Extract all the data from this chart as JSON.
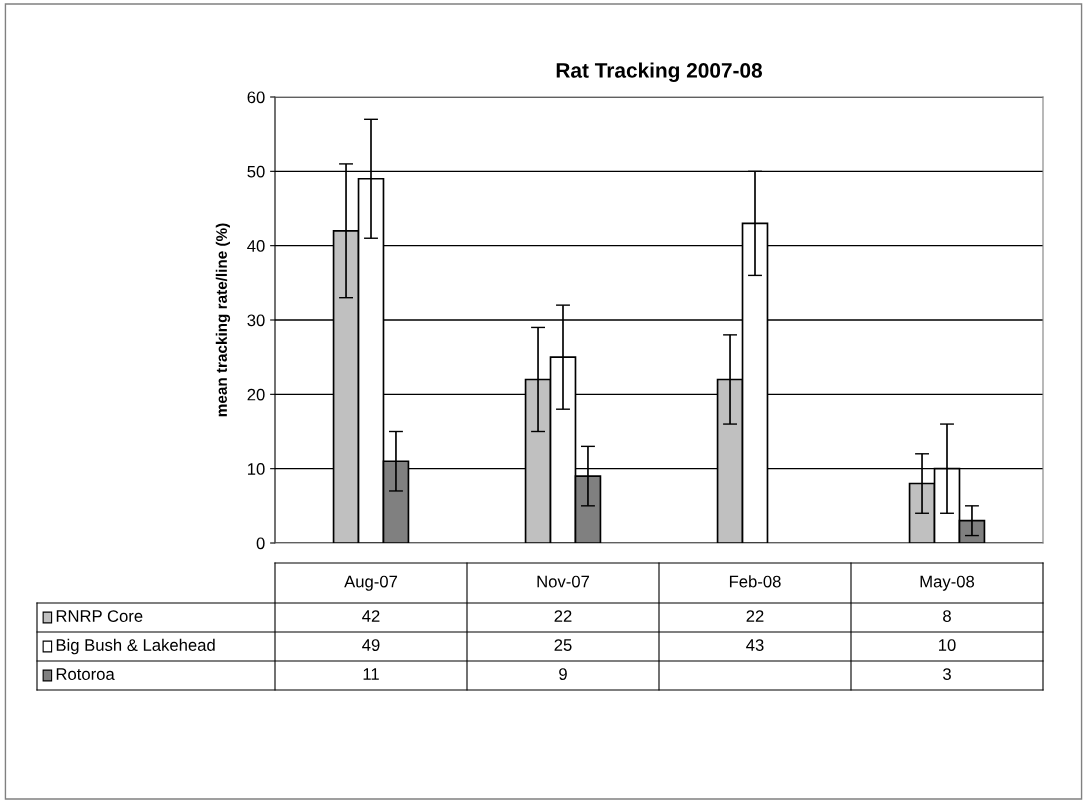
{
  "chart_data": {
    "type": "bar",
    "title": "Rat Tracking 2007-08",
    "ylabel": "mean tracking rate/line (%)",
    "categories": [
      "Aug-07",
      "Nov-07",
      "Feb-08",
      "May-08"
    ],
    "series": [
      {
        "name": "RNRP Core",
        "color": "#c0c0c0",
        "values": [
          42,
          22,
          22,
          8
        ],
        "errors": [
          [
            33,
            51
          ],
          [
            15,
            29
          ],
          [
            16,
            28
          ],
          [
            4,
            12
          ]
        ]
      },
      {
        "name": "Big Bush & Lakehead",
        "color": "#ffffff",
        "values": [
          49,
          25,
          43,
          10
        ],
        "errors": [
          [
            41,
            57
          ],
          [
            18,
            32
          ],
          [
            36,
            50
          ],
          [
            4,
            16
          ]
        ]
      },
      {
        "name": "Rotoroa",
        "color": "#808080",
        "values": [
          11,
          9,
          null,
          3
        ],
        "errors": [
          [
            7,
            15
          ],
          [
            5,
            13
          ],
          null,
          [
            1,
            5
          ]
        ]
      }
    ],
    "ylim": [
      0,
      60
    ],
    "yticks": [
      0,
      10,
      20,
      30,
      40,
      50,
      60
    ],
    "grid": "y",
    "data_labels": true,
    "legend": "bottom"
  }
}
